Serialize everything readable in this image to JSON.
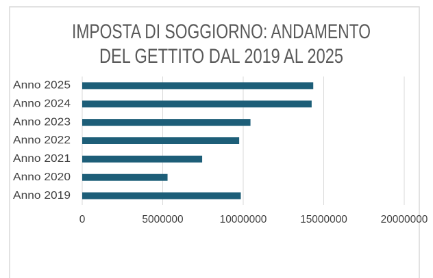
{
  "chart_data": {
    "type": "bar",
    "orientation": "horizontal",
    "title": [
      "IMPOSTA DI SOGGIORNO: ANDAMENTO",
      "DEL GETTITO DAL 2019 AL 2025"
    ],
    "categories": [
      "Anno 2025",
      "Anno 2024",
      "Anno 2023",
      "Anno 2022",
      "Anno 2021",
      "Anno 2020",
      "Anno 2019"
    ],
    "values": [
      14350000,
      14250000,
      10450000,
      9750000,
      7450000,
      5300000,
      9850000
    ],
    "color": "#1d5e78",
    "xlim": [
      0,
      20000000
    ],
    "xticks": [
      0,
      5000000,
      10000000,
      15000000,
      20000000
    ],
    "grid": true
  }
}
